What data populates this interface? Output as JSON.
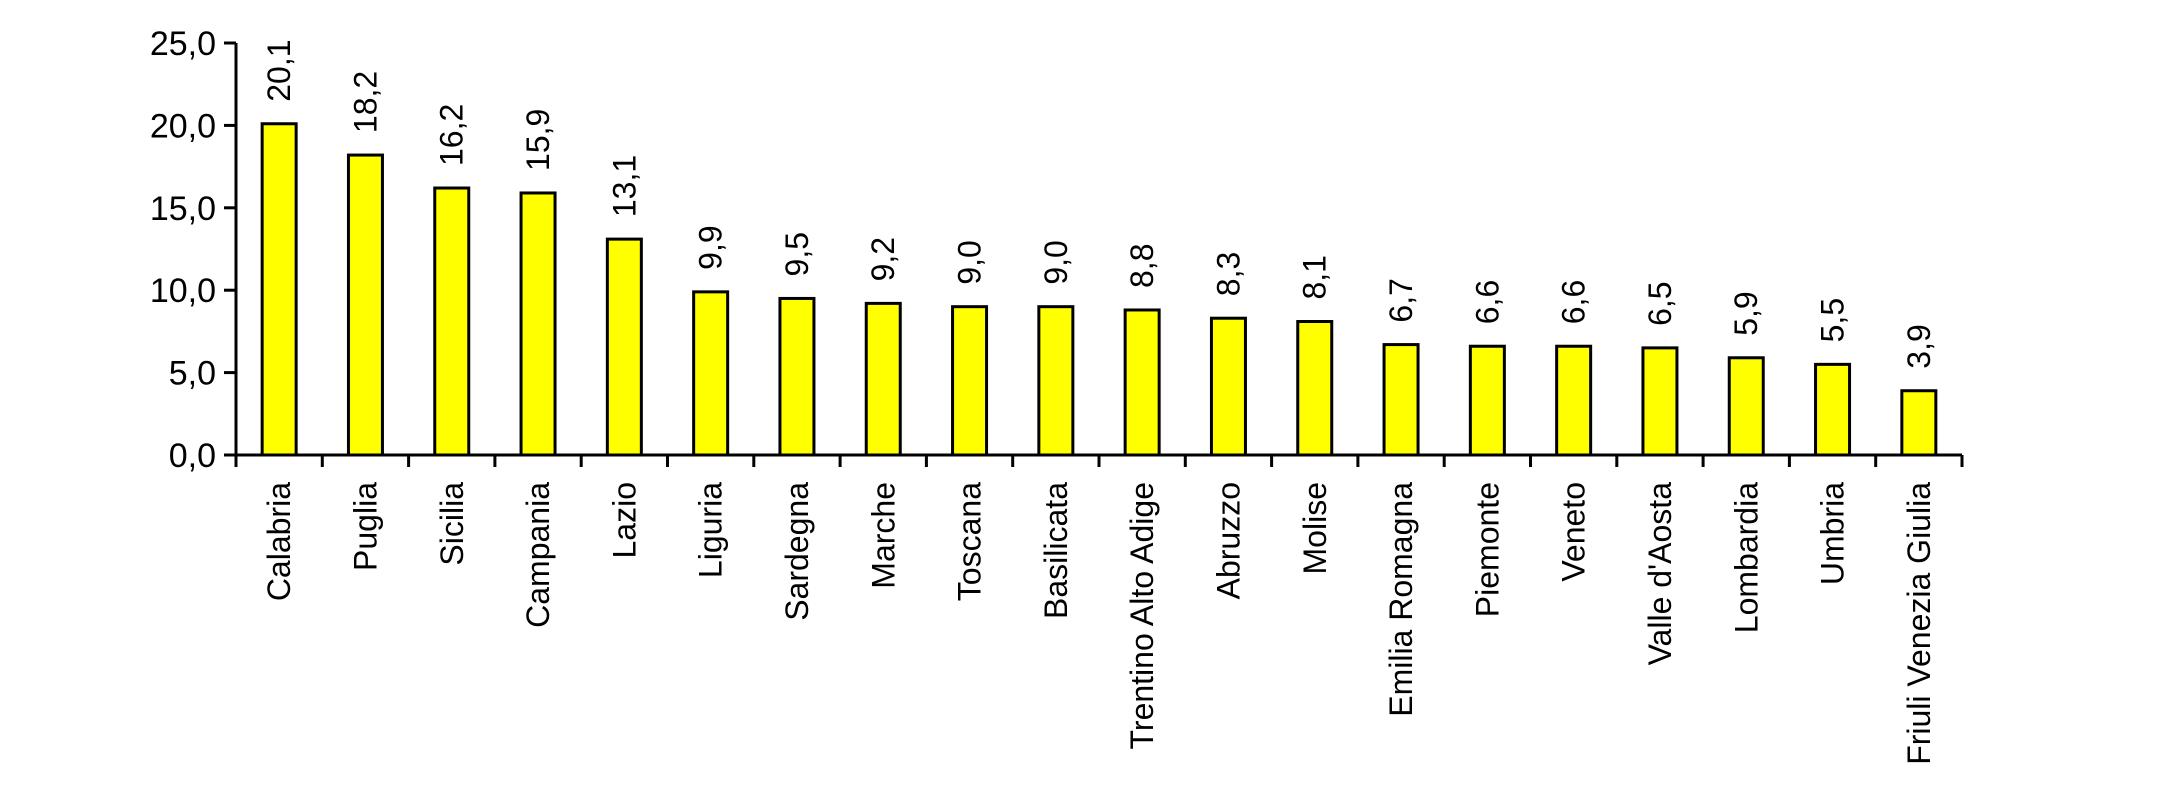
{
  "chart_data": {
    "type": "bar",
    "title": "",
    "xlabel": "",
    "ylabel": "",
    "ylim": [
      0,
      25
    ],
    "yticks": [
      "0,0",
      "5,0",
      "10,0",
      "15,0",
      "20,0",
      "25,0"
    ],
    "ytick_values": [
      0,
      5,
      10,
      15,
      20,
      25
    ],
    "grid": false,
    "legend": "none",
    "categories": [
      "Calabria",
      "Puglia",
      "Sicilia",
      "Campania",
      "Lazio",
      "Liguria",
      "Sardegna",
      "Marche",
      "Toscana",
      "Basilicata",
      "Trentino Alto Adige",
      "Abruzzo",
      "Molise",
      "Emilia Romagna",
      "Piemonte",
      "Veneto",
      "Valle d'Aosta",
      "Lombardia",
      "Umbria",
      "Friuli Venezia Giulia"
    ],
    "values": [
      20.1,
      18.2,
      16.2,
      15.9,
      13.1,
      9.9,
      9.5,
      9.2,
      9.0,
      9.0,
      8.8,
      8.3,
      8.1,
      6.7,
      6.6,
      6.6,
      6.5,
      5.9,
      5.5,
      3.9
    ],
    "value_labels": [
      "20,1",
      "18,2",
      "16,2",
      "15,9",
      "13,1",
      "9,9",
      "9,5",
      "9,2",
      "9,0",
      "9,0",
      "8,8",
      "8,3",
      "8,1",
      "6,7",
      "6,6",
      "6,6",
      "6,5",
      "5,9",
      "5,5",
      "3,9"
    ],
    "colors": {
      "bar_fill": "#ffff00",
      "bar_stroke": "#000000",
      "axis": "#000000"
    }
  }
}
